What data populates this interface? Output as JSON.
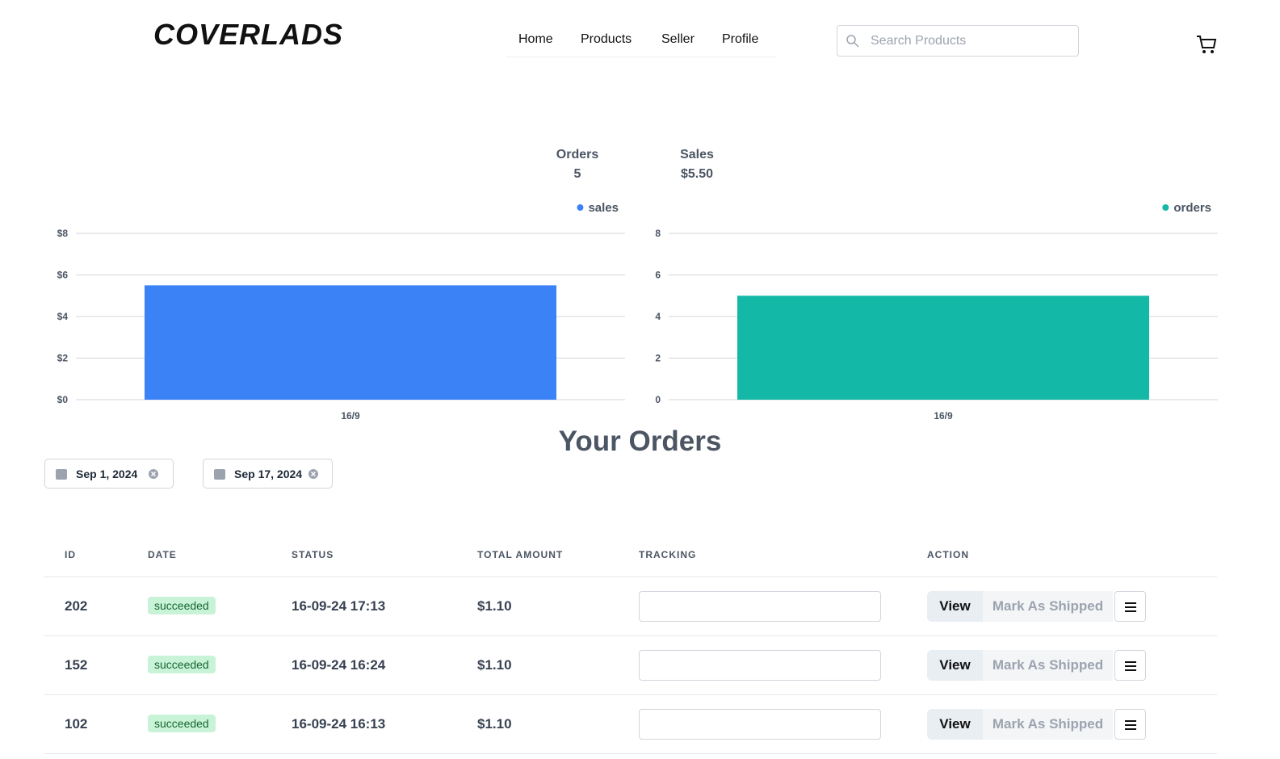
{
  "header": {
    "logo": "COVERLADS",
    "nav": [
      "Home",
      "Products",
      "Seller",
      "Profile"
    ],
    "search_placeholder": "Search Products"
  },
  "stats": [
    {
      "label": "Orders",
      "value": "5"
    },
    {
      "label": "Sales",
      "value": "$5.50"
    }
  ],
  "chart_data": [
    {
      "type": "bar",
      "categories": [
        "16/9"
      ],
      "series": [
        {
          "name": "sales",
          "color": "#3b82f6",
          "values": [
            5.5
          ]
        }
      ],
      "ylim": [
        0,
        8
      ],
      "yticks": [
        {
          "value": 0,
          "label": "$0"
        },
        {
          "value": 2,
          "label": "$2"
        },
        {
          "value": 4,
          "label": "$4"
        },
        {
          "value": 6,
          "label": "$6"
        },
        {
          "value": 8,
          "label": "$8"
        }
      ],
      "grid": true,
      "legend": "top-right"
    },
    {
      "type": "bar",
      "categories": [
        "16/9"
      ],
      "series": [
        {
          "name": "orders",
          "color": "#14b8a6",
          "values": [
            5
          ]
        }
      ],
      "ylim": [
        0,
        8
      ],
      "yticks": [
        0,
        2,
        4,
        6,
        8
      ],
      "grid": true,
      "legend": "top-right"
    }
  ],
  "orders": {
    "title": "Your Orders",
    "filters": [
      "Sep 1, 2024",
      "Sep 17, 2024"
    ],
    "table": {
      "columns": [
        "ID",
        "DATE",
        "STATUS",
        "TOTAL AMOUNT",
        "TRACKING",
        "ACTION"
      ],
      "rows": [
        [
          "202",
          "succeeded",
          "16-09-24 17:13",
          "$1.10"
        ],
        [
          "152",
          "succeeded",
          "16-09-24 16:24",
          "$1.10"
        ],
        [
          "102",
          "succeeded",
          "16-09-24 16:13",
          "$1.10"
        ]
      ],
      "actions": {
        "view": "View",
        "ship": "Mark As Shipped"
      }
    }
  }
}
